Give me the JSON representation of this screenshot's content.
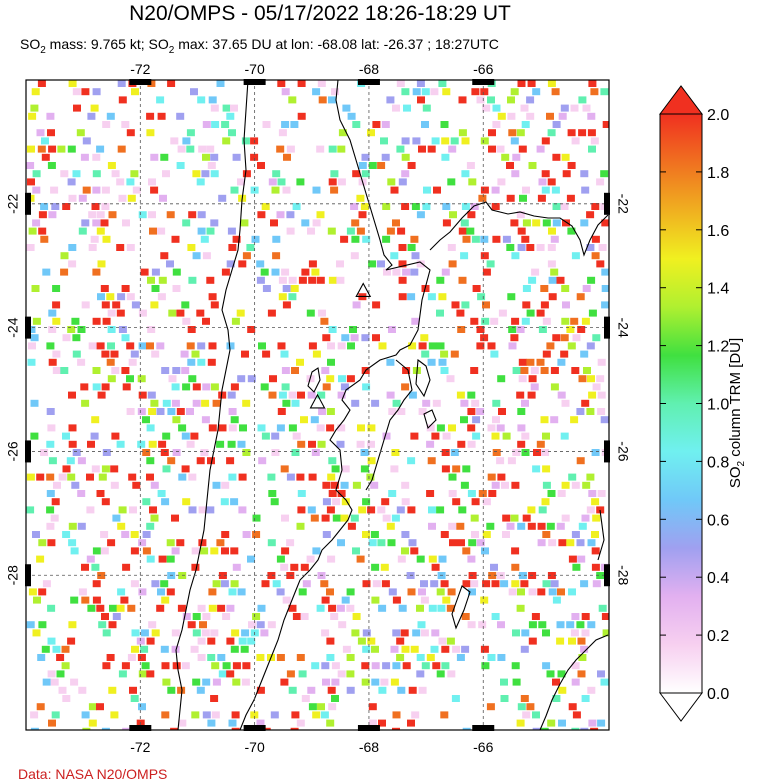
{
  "title": "N20/OMPS - 05/17/2022 18:26-18:29 UT",
  "subtitle": {
    "so2_mass_prefix": "SO",
    "so2_mass_sub": "2",
    "so2_mass_text": " mass: 9.765 kt; ",
    "so2_max_prefix": "SO",
    "so2_max_sub": "2",
    "so2_max_text": " max: 37.65 DU at lon: -68.08 lat: -26.37 ; 18:27UTC"
  },
  "map": {
    "lon_ticks": [
      "-72",
      "-70",
      "-68",
      "-66"
    ],
    "lat_ticks": [
      "-22",
      "-24",
      "-26",
      "-28"
    ],
    "lon_values": [
      -72,
      -70,
      -68,
      -66
    ],
    "lat_values": [
      -22,
      -24,
      -26,
      -28
    ],
    "lon_range": [
      -74.0,
      -63.8
    ],
    "lat_range": [
      -20.0,
      -30.5
    ],
    "grid": true,
    "volcano_markers": [
      {
        "name": "volcano-marker-1",
        "lon": -68.1,
        "lat": -23.4
      },
      {
        "name": "volcano-marker-2",
        "lon": -68.9,
        "lat": -25.2
      }
    ]
  },
  "colorbar": {
    "label_prefix": "SO",
    "label_sub": "2",
    "label_text": " column TRM [DU]",
    "ticks": [
      "0.0",
      "0.2",
      "0.4",
      "0.6",
      "0.8",
      "1.0",
      "1.2",
      "1.4",
      "1.6",
      "1.8",
      "2.0"
    ],
    "min": 0.0,
    "max": 2.0,
    "colors": [
      "#ffffff",
      "#f7d0f0",
      "#e2b0f0",
      "#a0a0f0",
      "#70c8f8",
      "#70f0f0",
      "#60f0b0",
      "#40e040",
      "#b0f030",
      "#f0f020",
      "#f0b020",
      "#f07020",
      "#f03020"
    ]
  },
  "credit": "Data: NASA N20/OMPS",
  "colors": {
    "high": "#f02010",
    "credit": "#cc2020"
  }
}
